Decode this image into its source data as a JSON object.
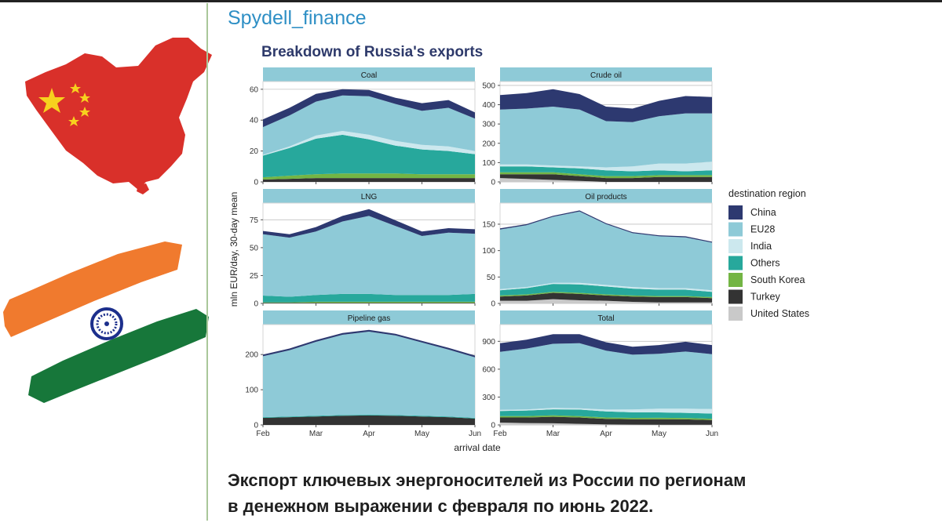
{
  "header": {
    "channel": "Spydell_finance"
  },
  "caption": {
    "line1": "Экспорт ключевых энергоносителей из России по регионам",
    "line2": "в денежном выражении с февраля по июнь 2022."
  },
  "colors": {
    "China": "#2d3970",
    "EU28": "#8ecad7",
    "India": "#cce8ee",
    "Others": "#27a89c",
    "South Korea": "#73b544",
    "Turkey": "#333333",
    "United States": "#c9c9c9",
    "strip": "#8ecad7",
    "grid": "#c2c2c2"
  },
  "chart_data": {
    "type": "area",
    "title": "Breakdown of Russia's exports",
    "xlabel": "arrival date",
    "ylabel": "mln EUR/day, 30-day mean",
    "x_ticks": [
      "Feb",
      "Mar",
      "Apr",
      "May",
      "Jun"
    ],
    "legend": {
      "title": "destination region",
      "entries": [
        "China",
        "EU28",
        "India",
        "Others",
        "South Korea",
        "Turkey",
        "United States"
      ]
    },
    "series_order": [
      "United States",
      "Turkey",
      "South Korea",
      "Others",
      "India",
      "EU28",
      "China"
    ],
    "panels": [
      {
        "name": "Coal",
        "ylim": [
          0,
          65
        ],
        "yticks": [
          0,
          20,
          40,
          60
        ],
        "series": {
          "United States": [
            0,
            0,
            0,
            0,
            0,
            0,
            0,
            0,
            0
          ],
          "Turkey": [
            1.5,
            2,
            2.5,
            2.5,
            2.5,
            2.5,
            2.5,
            2.5,
            2.5
          ],
          "South Korea": [
            1.5,
            2,
            2.5,
            3,
            3,
            3,
            2.5,
            2.5,
            2.5
          ],
          "Others": [
            14,
            18,
            23,
            25,
            22,
            18,
            16,
            15,
            13
          ],
          "India": [
            0.5,
            1,
            2,
            2.5,
            3,
            3,
            3,
            3,
            2
          ],
          "EU28": [
            18,
            20,
            22,
            23,
            25,
            24,
            22,
            25,
            21
          ],
          "China": [
            5,
            5,
            5,
            4,
            4,
            4,
            5,
            5,
            4
          ]
        }
      },
      {
        "name": "Crude oil",
        "ylim": [
          0,
          520
        ],
        "yticks": [
          0,
          100,
          200,
          300,
          400,
          500
        ],
        "series": {
          "United States": [
            20,
            15,
            10,
            5,
            0,
            0,
            0,
            0,
            0
          ],
          "Turkey": [
            20,
            25,
            30,
            25,
            20,
            20,
            25,
            25,
            25
          ],
          "South Korea": [
            10,
            10,
            10,
            10,
            10,
            10,
            10,
            10,
            10
          ],
          "Others": [
            30,
            30,
            25,
            30,
            30,
            25,
            25,
            20,
            25
          ],
          "India": [
            10,
            10,
            10,
            10,
            15,
            25,
            35,
            40,
            45
          ],
          "EU28": [
            285,
            290,
            305,
            295,
            240,
            230,
            245,
            260,
            250
          ],
          "China": [
            75,
            80,
            90,
            80,
            75,
            70,
            80,
            90,
            85
          ]
        }
      },
      {
        "name": "LNG",
        "ylim": [
          0,
          90
        ],
        "yticks": [
          0,
          25,
          50,
          75
        ],
        "series": {
          "United States": [
            0,
            0,
            0,
            0,
            0,
            0,
            0,
            0,
            0
          ],
          "Turkey": [
            0.5,
            0.5,
            0.5,
            0.5,
            0.5,
            0.5,
            0.5,
            0.5,
            0.5
          ],
          "South Korea": [
            0.5,
            0.5,
            1,
            1,
            1,
            1,
            1,
            1,
            1
          ],
          "Others": [
            6,
            5,
            6,
            7,
            7,
            6,
            6,
            6,
            7
          ],
          "India": [
            0,
            0,
            0,
            0,
            0,
            0,
            0,
            0,
            0
          ],
          "EU28": [
            55,
            53,
            57,
            65,
            70,
            62,
            53,
            56,
            54
          ],
          "China": [
            3,
            3,
            4,
            5,
            6,
            5,
            4,
            4,
            4
          ]
        }
      },
      {
        "name": "Oil products",
        "ylim": [
          0,
          190
        ],
        "yticks": [
          0,
          50,
          100,
          150
        ],
        "series": {
          "United States": [
            5,
            5,
            8,
            6,
            5,
            3,
            2,
            2,
            2
          ],
          "Turkey": [
            8,
            10,
            12,
            12,
            10,
            10,
            10,
            10,
            8
          ],
          "South Korea": [
            2,
            2,
            2,
            2,
            2,
            2,
            2,
            2,
            2
          ],
          "Others": [
            10,
            12,
            15,
            16,
            15,
            13,
            12,
            12,
            10
          ],
          "India": [
            2,
            2,
            2,
            3,
            3,
            3,
            3,
            3,
            3
          ],
          "EU28": [
            113,
            117,
            125,
            135,
            115,
            102,
            98,
            96,
            90
          ],
          "China": [
            2,
            2,
            2,
            2,
            2,
            2,
            2,
            2,
            2
          ]
        }
      },
      {
        "name": "Pipeline gas",
        "ylim": [
          0,
          285
        ],
        "yticks": [
          0,
          100,
          200
        ],
        "series": {
          "United States": [
            0,
            0,
            0,
            0,
            0,
            0,
            0,
            0,
            0
          ],
          "Turkey": [
            20,
            22,
            24,
            26,
            27,
            26,
            24,
            22,
            18
          ],
          "South Korea": [
            0,
            0,
            0,
            0,
            0,
            0,
            0,
            0,
            0
          ],
          "Others": [
            2,
            2,
            2,
            2,
            2,
            2,
            2,
            2,
            2
          ],
          "India": [
            0,
            0,
            0,
            0,
            0,
            0,
            0,
            0,
            0
          ],
          "EU28": [
            173,
            188,
            210,
            228,
            236,
            226,
            208,
            190,
            172
          ],
          "China": [
            5,
            5,
            5,
            5,
            5,
            5,
            5,
            5,
            5
          ]
        }
      },
      {
        "name": "Total",
        "ylim": [
          0,
          1080
        ],
        "yticks": [
          0,
          300,
          600,
          900
        ],
        "series": {
          "United States": [
            25,
            20,
            18,
            12,
            5,
            3,
            2,
            2,
            2
          ],
          "Turkey": [
            55,
            60,
            70,
            68,
            60,
            58,
            60,
            58,
            50
          ],
          "South Korea": [
            15,
            15,
            15,
            15,
            15,
            15,
            15,
            15,
            15
          ],
          "Others": [
            55,
            60,
            65,
            70,
            65,
            60,
            58,
            55,
            55
          ],
          "India": [
            12,
            12,
            15,
            15,
            20,
            30,
            40,
            45,
            50
          ],
          "EU28": [
            625,
            655,
            690,
            700,
            635,
            590,
            590,
            615,
            590
          ],
          "China": [
            93,
            95,
            103,
            97,
            90,
            85,
            95,
            105,
            98
          ]
        }
      }
    ]
  }
}
